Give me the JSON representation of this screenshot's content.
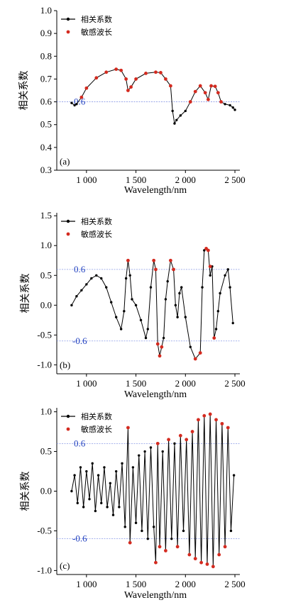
{
  "chart_data": [
    {
      "type": "line",
      "panel_label": "(a)",
      "xlabel": "Wavelength/nm",
      "ylabel": "相关系数",
      "xlim": [
        700,
        2550
      ],
      "ylim": [
        0.3,
        1.0
      ],
      "xticks": [
        1000,
        1500,
        2000,
        2500
      ],
      "xtick_labels": [
        "1 000",
        "1 500",
        "2 000",
        "2 500"
      ],
      "yticks": [
        0.3,
        0.4,
        0.5,
        0.6,
        0.7,
        0.8,
        0.9,
        1.0
      ],
      "ytick_labels": [
        "0.3",
        "0.4",
        "0.5",
        "0.6",
        "0.7",
        "0.8",
        "0.9",
        "1.0"
      ],
      "reference_lines": [
        {
          "y": 0.6,
          "label": "0.6"
        }
      ],
      "legend": {
        "placement": "top-left",
        "entries": [
          "相关系数",
          "敏感波长"
        ]
      },
      "series": [
        {
          "name": "相关系数",
          "x": [
            850,
            880,
            900,
            950,
            1000,
            1100,
            1200,
            1300,
            1350,
            1400,
            1420,
            1450,
            1500,
            1600,
            1700,
            1750,
            1800,
            1850,
            1870,
            1890,
            1910,
            1950,
            2000,
            2050,
            2100,
            2150,
            2200,
            2230,
            2260,
            2300,
            2330,
            2360,
            2400,
            2450,
            2480,
            2500
          ],
          "y": [
            0.595,
            0.585,
            0.59,
            0.62,
            0.66,
            0.705,
            0.73,
            0.743,
            0.738,
            0.7,
            0.65,
            0.665,
            0.7,
            0.725,
            0.73,
            0.728,
            0.7,
            0.67,
            0.56,
            0.505,
            0.52,
            0.54,
            0.56,
            0.6,
            0.645,
            0.67,
            0.64,
            0.61,
            0.67,
            0.668,
            0.64,
            0.6,
            0.59,
            0.585,
            0.575,
            0.565
          ]
        },
        {
          "name": "敏感波长",
          "x": [
            950,
            1000,
            1100,
            1200,
            1300,
            1350,
            1400,
            1420,
            1450,
            1500,
            1600,
            1700,
            1750,
            1800,
            1850,
            2050,
            2100,
            2150,
            2200,
            2230,
            2260,
            2300,
            2330,
            2360
          ],
          "y": [
            0.62,
            0.66,
            0.705,
            0.73,
            0.743,
            0.738,
            0.7,
            0.65,
            0.665,
            0.7,
            0.725,
            0.73,
            0.728,
            0.7,
            0.67,
            0.6,
            0.645,
            0.67,
            0.64,
            0.61,
            0.67,
            0.668,
            0.64,
            0.6
          ]
        }
      ]
    },
    {
      "type": "line",
      "panel_label": "(b)",
      "xlabel": "Wavelength/nm",
      "ylabel": "相关系数",
      "xlim": [
        700,
        2550
      ],
      "ylim": [
        -1.15,
        1.55
      ],
      "xticks": [
        1000,
        1500,
        2000,
        2500
      ],
      "xtick_labels": [
        "1 000",
        "1 500",
        "2 000",
        "2 500"
      ],
      "yticks": [
        -1.0,
        -0.5,
        0.0,
        0.5,
        1.0,
        1.5
      ],
      "ytick_labels": [
        "-1.0",
        "-0.5",
        "0.0",
        "0.5",
        "1.0",
        "1.5"
      ],
      "reference_lines": [
        {
          "y": 0.6,
          "label": "0.6"
        },
        {
          "y": -0.6,
          "label": "-0.6"
        }
      ],
      "legend": {
        "placement": "top-left",
        "entries": [
          "相关系数",
          "敏感波长"
        ]
      },
      "series": [
        {
          "name": "相关系数",
          "x": [
            850,
            900,
            950,
            1000,
            1050,
            1100,
            1150,
            1200,
            1250,
            1300,
            1350,
            1380,
            1400,
            1420,
            1440,
            1460,
            1500,
            1550,
            1600,
            1620,
            1650,
            1680,
            1700,
            1720,
            1740,
            1760,
            1780,
            1800,
            1820,
            1850,
            1880,
            1900,
            1920,
            1940,
            1960,
            2000,
            2050,
            2100,
            2150,
            2170,
            2190,
            2210,
            2230,
            2250,
            2270,
            2290,
            2310,
            2330,
            2350,
            2400,
            2430,
            2450,
            2480
          ],
          "y": [
            0.0,
            0.15,
            0.25,
            0.35,
            0.45,
            0.5,
            0.45,
            0.3,
            0.05,
            -0.2,
            -0.4,
            -0.1,
            0.45,
            0.75,
            0.5,
            0.1,
            0.0,
            -0.25,
            -0.55,
            -0.4,
            0.3,
            0.75,
            0.6,
            -0.65,
            -0.85,
            -0.7,
            -0.55,
            0.1,
            0.4,
            0.75,
            0.6,
            0.0,
            -0.2,
            0.2,
            0.3,
            -0.2,
            -0.7,
            -0.9,
            -0.8,
            0.3,
            0.92,
            0.95,
            0.92,
            0.5,
            0.65,
            -0.55,
            -0.4,
            -0.1,
            0.2,
            0.5,
            0.6,
            0.3,
            -0.3
          ]
        },
        {
          "name": "敏感波长",
          "x": [
            1420,
            1680,
            1700,
            1720,
            1740,
            1760,
            1850,
            1880,
            2100,
            2150,
            2210,
            2230,
            2250,
            2290
          ],
          "y": [
            0.75,
            0.75,
            0.6,
            -0.65,
            -0.85,
            -0.7,
            0.75,
            0.6,
            -0.9,
            -0.8,
            0.95,
            0.92,
            0.65,
            -0.55
          ]
        }
      ]
    },
    {
      "type": "line",
      "panel_label": "(c)",
      "xlabel": "Wavelength/nm",
      "ylabel": "相关系数",
      "xlim": [
        700,
        2550
      ],
      "ylim": [
        -1.05,
        1.05
      ],
      "xticks": [
        1000,
        1500,
        2000,
        2500
      ],
      "xtick_labels": [
        "1 000",
        "1 500",
        "2 000",
        "2 500"
      ],
      "yticks": [
        -1.0,
        -0.5,
        0.0,
        0.5,
        1.0
      ],
      "ytick_labels": [
        "-1.0",
        "-0.5",
        "0.0",
        "0.5",
        "1.0"
      ],
      "reference_lines": [
        {
          "y": 0.6,
          "label": "0.6"
        },
        {
          "y": -0.6,
          "label": "-0.6"
        }
      ],
      "legend": {
        "placement": "top-left",
        "entries": [
          "相关系数",
          "敏感波长"
        ]
      },
      "series": [
        {
          "name": "相关系数",
          "x": [
            850,
            880,
            910,
            940,
            970,
            1000,
            1030,
            1060,
            1090,
            1120,
            1150,
            1180,
            1210,
            1240,
            1270,
            1300,
            1330,
            1360,
            1390,
            1420,
            1440,
            1470,
            1500,
            1530,
            1560,
            1590,
            1620,
            1650,
            1680,
            1700,
            1720,
            1740,
            1770,
            1800,
            1830,
            1860,
            1890,
            1920,
            1950,
            1980,
            2010,
            2040,
            2070,
            2100,
            2130,
            2160,
            2190,
            2220,
            2250,
            2280,
            2310,
            2340,
            2370,
            2400,
            2430,
            2460,
            2490
          ],
          "y": [
            0.0,
            0.2,
            -0.15,
            0.3,
            -0.2,
            0.25,
            -0.1,
            0.35,
            -0.25,
            0.2,
            -0.15,
            0.3,
            -0.2,
            0.1,
            -0.3,
            0.25,
            -0.2,
            0.35,
            -0.45,
            0.8,
            -0.65,
            0.3,
            -0.4,
            0.45,
            -0.5,
            0.5,
            -0.6,
            0.55,
            -0.45,
            -0.9,
            0.6,
            -0.7,
            0.5,
            -0.75,
            0.65,
            -0.6,
            0.6,
            -0.7,
            0.7,
            -0.5,
            0.65,
            -0.8,
            0.75,
            -0.85,
            0.9,
            -0.9,
            0.95,
            -0.92,
            0.97,
            -0.95,
            0.9,
            -0.8,
            0.85,
            -0.7,
            0.8,
            -0.5,
            0.2
          ]
        },
        {
          "name": "敏感波长",
          "x": [
            1420,
            1440,
            1700,
            1720,
            1740,
            1800,
            1830,
            1920,
            1950,
            2010,
            2040,
            2070,
            2100,
            2130,
            2160,
            2190,
            2220,
            2250,
            2280,
            2310,
            2340,
            2370,
            2400,
            2430
          ],
          "y": [
            0.8,
            -0.65,
            -0.9,
            0.6,
            -0.7,
            -0.75,
            0.65,
            -0.7,
            0.7,
            0.65,
            -0.8,
            0.75,
            -0.85,
            0.9,
            -0.9,
            0.95,
            -0.92,
            0.97,
            -0.95,
            0.9,
            -0.8,
            0.85,
            -0.7,
            0.8
          ]
        }
      ]
    }
  ]
}
